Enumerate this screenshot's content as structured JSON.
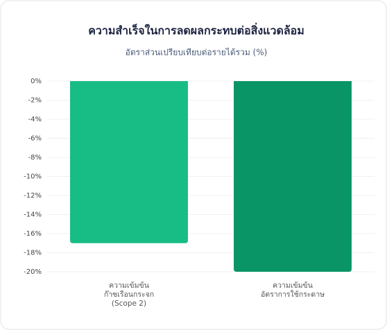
{
  "chart_data": {
    "type": "bar",
    "title": "ความสำเร็จในการลดผลกระทบต่อสิ่งแวดล้อม",
    "subtitle": "อัตราส่วนเปรียบเทียบต่อรายได้รวม (%)",
    "categories": [
      [
        "ความเข้มข้น",
        "ก๊าซเรือนกระจก",
        "(Scope 2)"
      ],
      [
        "ความเข้มข้น",
        "อัตราการใช้กระดาษ"
      ]
    ],
    "values": [
      -17,
      -20
    ],
    "colors": [
      "#17bd84",
      "#0a9566"
    ],
    "ylim": [
      -20,
      0
    ],
    "yticks": [
      {
        "value": 0,
        "label": "0%"
      },
      {
        "value": -2,
        "label": "-2%"
      },
      {
        "value": -4,
        "label": "-4%"
      },
      {
        "value": -6,
        "label": "-6%"
      },
      {
        "value": -8,
        "label": "-8%"
      },
      {
        "value": -10,
        "label": "-10%"
      },
      {
        "value": -12,
        "label": "-12%"
      },
      {
        "value": -14,
        "label": "-14%"
      },
      {
        "value": -16,
        "label": "-16%"
      },
      {
        "value": -18,
        "label": "-18%"
      },
      {
        "value": -20,
        "label": "-20%"
      }
    ],
    "grid": true
  }
}
